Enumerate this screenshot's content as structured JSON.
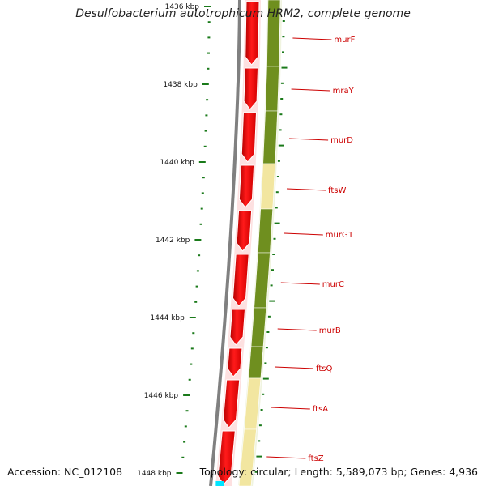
{
  "title": "Desulfobacterium autotrophicum HRM2, complete genome",
  "accession": "Accession: NC_012108",
  "topology": "Topology: circular; Length: 5,589,073 bp; Genes: 4,936",
  "colors": {
    "reverse_strand_gene": "#ff0000",
    "olive_segment": "#6f8f1f",
    "pale_segment": "#f2e6a0",
    "tick": "#1a7a1a",
    "label_text": "#cc0000",
    "backbone": "#808080",
    "cyan_marker": "#00e5ff"
  },
  "ruler": {
    "labels": [
      "1436 kbp",
      "1438 kbp",
      "1440 kbp",
      "1442 kbp",
      "1444 kbp",
      "1446 kbp",
      "1448 kbp"
    ]
  },
  "genes": [
    {
      "name": "murF",
      "segment": "olive"
    },
    {
      "name": "mraY",
      "segment": "olive"
    },
    {
      "name": "murD",
      "segment": "olive"
    },
    {
      "name": "ftsW",
      "segment": "pale"
    },
    {
      "name": "murG1",
      "segment": "olive"
    },
    {
      "name": "murC",
      "segment": "olive"
    },
    {
      "name": "murB",
      "segment": "olive"
    },
    {
      "name": "ftsQ",
      "segment": "olive"
    },
    {
      "name": "ftsA",
      "segment": "pale"
    },
    {
      "name": "ftsZ",
      "segment": "pale"
    }
  ]
}
